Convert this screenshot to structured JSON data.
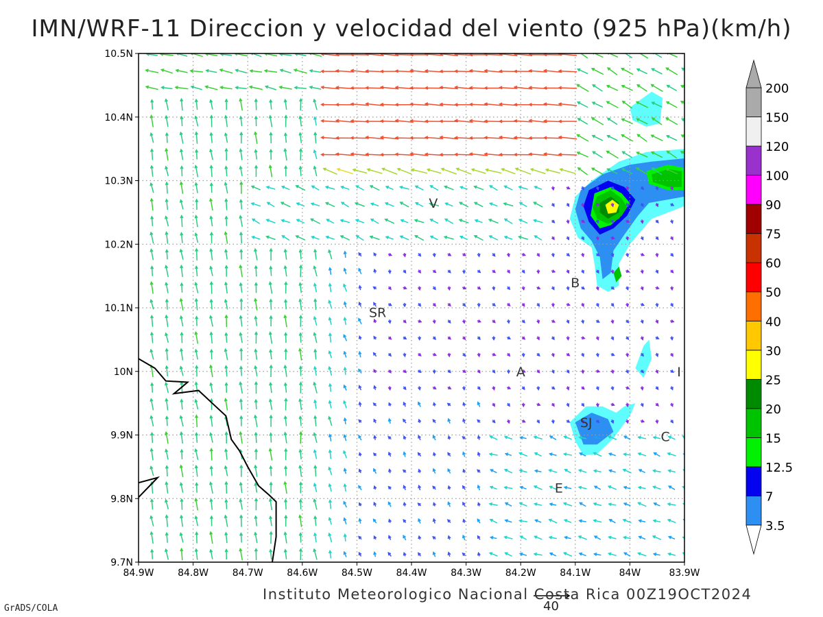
{
  "title": "IMN/WRF-11 Direccion y velocidad del viento (925 hPa)(km/h)",
  "credit": "Instituto Meteorologico Nacional Costa Rica 00Z19OCT2024",
  "software": "GrADS/COLA",
  "reference_vector": {
    "label": "40",
    "speed_kmh": 40
  },
  "map": {
    "lon_range": [
      -84.9,
      -83.9
    ],
    "lat_range": [
      9.7,
      10.5
    ],
    "lon_ticks": [
      "84.9W",
      "84.8W",
      "84.7W",
      "84.6W",
      "84.5W",
      "84.4W",
      "84.3W",
      "84.2W",
      "84.1W",
      "84W",
      "83.9W"
    ],
    "lat_ticks": [
      "9.7N",
      "9.8N",
      "9.9N",
      "10N",
      "10.1N",
      "10.2N",
      "10.3N",
      "10.4N",
      "10.5N"
    ],
    "grid": "dotted",
    "coastline_points": [
      [
        -84.9,
        10.02
      ],
      [
        -84.87,
        10.005
      ],
      [
        -84.85,
        9.985
      ],
      [
        -84.81,
        9.983
      ],
      [
        -84.835,
        9.965
      ],
      [
        -84.79,
        9.97
      ],
      [
        -84.76,
        9.946
      ],
      [
        -84.74,
        9.93
      ],
      [
        -84.73,
        9.893
      ],
      [
        -84.715,
        9.875
      ],
      [
        -84.7,
        9.85
      ],
      [
        -84.68,
        9.82
      ],
      [
        -84.66,
        9.805
      ],
      [
        -84.648,
        9.795
      ],
      [
        -84.648,
        9.74
      ],
      [
        -84.655,
        9.7
      ]
    ],
    "coastline_points_2": [
      [
        -84.9,
        9.825
      ],
      [
        -84.865,
        9.833
      ],
      [
        -84.9,
        9.802
      ]
    ],
    "place_labels": [
      {
        "text": "V",
        "lon": -84.36,
        "lat": 10.265
      },
      {
        "text": "B",
        "lon": -84.1,
        "lat": 10.14
      },
      {
        "text": "SR",
        "lon": -84.462,
        "lat": 10.093
      },
      {
        "text": "A",
        "lon": -84.2,
        "lat": 10.0
      },
      {
        "text": "I",
        "lon": -83.91,
        "lat": 10.0
      },
      {
        "text": "SJ",
        "lon": -84.08,
        "lat": 9.92
      },
      {
        "text": "C",
        "lon": -83.935,
        "lat": 9.898
      },
      {
        "text": "E",
        "lon": -84.13,
        "lat": 9.817
      }
    ]
  },
  "shaded_areas": [
    {
      "level": "3.5",
      "polygons": [
        [
          [
            -84.07,
            10.3
          ],
          [
            -84.02,
            10.33
          ],
          [
            -83.97,
            10.345
          ],
          [
            -83.9,
            10.35
          ],
          [
            -83.9,
            10.26
          ],
          [
            -83.96,
            10.24
          ],
          [
            -83.98,
            10.22
          ],
          [
            -84.0,
            10.2
          ],
          [
            -84.02,
            10.17
          ],
          [
            -84.02,
            10.135
          ],
          [
            -84.04,
            10.125
          ],
          [
            -84.06,
            10.135
          ],
          [
            -84.065,
            10.17
          ],
          [
            -84.07,
            10.195
          ],
          [
            -84.095,
            10.21
          ],
          [
            -84.11,
            10.24
          ],
          [
            -84.1,
            10.275
          ]
        ],
        [
          [
            -84.0,
            10.415
          ],
          [
            -83.96,
            10.44
          ],
          [
            -83.94,
            10.43
          ],
          [
            -83.945,
            10.39
          ],
          [
            -83.97,
            10.385
          ],
          [
            -83.995,
            10.395
          ]
        ],
        [
          [
            -83.99,
            10.005
          ],
          [
            -83.975,
            10.04
          ],
          [
            -83.965,
            10.05
          ],
          [
            -83.96,
            10.02
          ],
          [
            -83.975,
            9.99
          ]
        ],
        [
          [
            -84.11,
            9.92
          ],
          [
            -84.08,
            9.945
          ],
          [
            -84.05,
            9.945
          ],
          [
            -84.025,
            9.935
          ],
          [
            -84.01,
            9.945
          ],
          [
            -83.99,
            9.95
          ],
          [
            -84.0,
            9.93
          ],
          [
            -84.03,
            9.895
          ],
          [
            -84.06,
            9.87
          ],
          [
            -84.085,
            9.868
          ],
          [
            -84.1,
            9.89
          ]
        ]
      ]
    },
    {
      "level": "7",
      "polygons": [
        [
          [
            -84.09,
            10.285
          ],
          [
            -84.05,
            10.31
          ],
          [
            -84.0,
            10.325
          ],
          [
            -83.96,
            10.33
          ],
          [
            -83.9,
            10.335
          ],
          [
            -83.9,
            10.275
          ],
          [
            -83.965,
            10.265
          ],
          [
            -83.985,
            10.245
          ],
          [
            -84.01,
            10.215
          ],
          [
            -84.03,
            10.19
          ],
          [
            -84.035,
            10.155
          ],
          [
            -84.05,
            10.145
          ],
          [
            -84.055,
            10.18
          ],
          [
            -84.07,
            10.205
          ],
          [
            -84.09,
            10.225
          ],
          [
            -84.1,
            10.255
          ]
        ],
        [
          [
            -84.1,
            9.92
          ],
          [
            -84.07,
            9.935
          ],
          [
            -84.04,
            9.925
          ],
          [
            -84.03,
            9.905
          ],
          [
            -84.06,
            9.885
          ],
          [
            -84.085,
            9.885
          ]
        ]
      ]
    },
    {
      "level": "12.5",
      "polygons": [
        [
          [
            -84.075,
            10.285
          ],
          [
            -84.04,
            10.3
          ],
          [
            -84.01,
            10.29
          ],
          [
            -83.99,
            10.27
          ],
          [
            -84.005,
            10.245
          ],
          [
            -84.03,
            10.225
          ],
          [
            -84.055,
            10.215
          ],
          [
            -84.075,
            10.235
          ],
          [
            -84.085,
            10.26
          ]
        ]
      ]
    },
    {
      "level": "15",
      "polygons": [
        [
          [
            -84.065,
            10.28
          ],
          [
            -84.035,
            10.29
          ],
          [
            -84.015,
            10.28
          ],
          [
            -84.0,
            10.265
          ],
          [
            -84.015,
            10.245
          ],
          [
            -84.035,
            10.23
          ],
          [
            -84.055,
            10.225
          ],
          [
            -84.072,
            10.245
          ]
        ],
        [
          [
            -83.97,
            10.315
          ],
          [
            -83.93,
            10.325
          ],
          [
            -83.9,
            10.32
          ],
          [
            -83.9,
            10.285
          ],
          [
            -83.93,
            10.285
          ],
          [
            -83.965,
            10.295
          ]
        ]
      ]
    },
    {
      "level": "20",
      "polygons": [
        [
          [
            -84.06,
            10.275
          ],
          [
            -84.035,
            10.285
          ],
          [
            -84.015,
            10.272
          ],
          [
            -84.005,
            10.258
          ],
          [
            -84.02,
            10.24
          ],
          [
            -84.04,
            10.232
          ],
          [
            -84.06,
            10.24
          ],
          [
            -84.068,
            10.258
          ]
        ],
        [
          [
            -83.96,
            10.31
          ],
          [
            -83.93,
            10.318
          ],
          [
            -83.905,
            10.315
          ],
          [
            -83.905,
            10.29
          ],
          [
            -83.93,
            10.29
          ],
          [
            -83.958,
            10.298
          ]
        ],
        [
          [
            -84.03,
            10.155
          ],
          [
            -84.02,
            10.165
          ],
          [
            -84.015,
            10.15
          ],
          [
            -84.025,
            10.14
          ]
        ]
      ]
    },
    {
      "level": "25",
      "polygons": [
        [
          [
            -84.055,
            10.265
          ],
          [
            -84.035,
            10.275
          ],
          [
            -84.02,
            10.265
          ],
          [
            -84.02,
            10.25
          ],
          [
            -84.04,
            10.24
          ],
          [
            -84.055,
            10.25
          ]
        ]
      ]
    },
    {
      "level": "30",
      "polygons": [
        [
          [
            -84.045,
            10.262
          ],
          [
            -84.032,
            10.27
          ],
          [
            -84.02,
            10.262
          ],
          [
            -84.025,
            10.25
          ],
          [
            -84.04,
            10.248
          ]
        ]
      ]
    }
  ],
  "colorbar": {
    "levels": [
      "3.5",
      "7",
      "12.5",
      "15",
      "20",
      "25",
      "30",
      "40",
      "50",
      "60",
      "75",
      "90",
      "100",
      "120",
      "150",
      "200"
    ],
    "colors": [
      "#5ffdfd",
      "#2e8ff3",
      "#0303f0",
      "#02f002",
      "#00c300",
      "#008a00",
      "#ffff00",
      "#ffc800",
      "#ff6f00",
      "#ff0000",
      "#c83200",
      "#a00000",
      "#ff00ff",
      "#9932cc",
      "#f0f0f0",
      "#aaaaaa"
    ]
  },
  "vector_colors": [
    "#8a2be2",
    "#3f52f2",
    "#1aa0f5",
    "#22d3cc",
    "#28cc82",
    "#3ad035",
    "#a8d830",
    "#f0d830",
    "#f0a030",
    "#f05030",
    "#e82020"
  ]
}
